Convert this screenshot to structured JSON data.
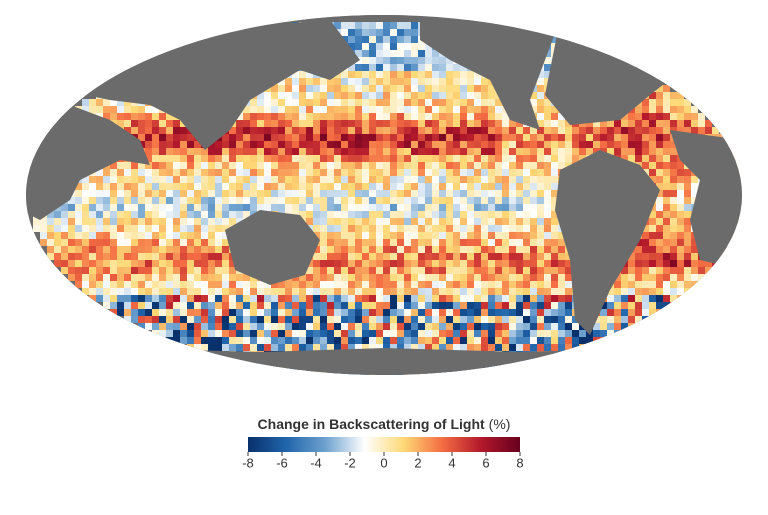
{
  "legend": {
    "title": "Change in Backscattering of Light",
    "unit": "(%)",
    "range": [
      -8,
      8
    ],
    "ticks": [
      -8,
      -6,
      -4,
      -2,
      0,
      2,
      4,
      6,
      8
    ],
    "colors": [
      "#08306b",
      "#2166ac",
      "#6fa2cf",
      "#ffffff",
      "#fed976",
      "#f46d43",
      "#b2182b",
      "#67001f"
    ]
  }
}
